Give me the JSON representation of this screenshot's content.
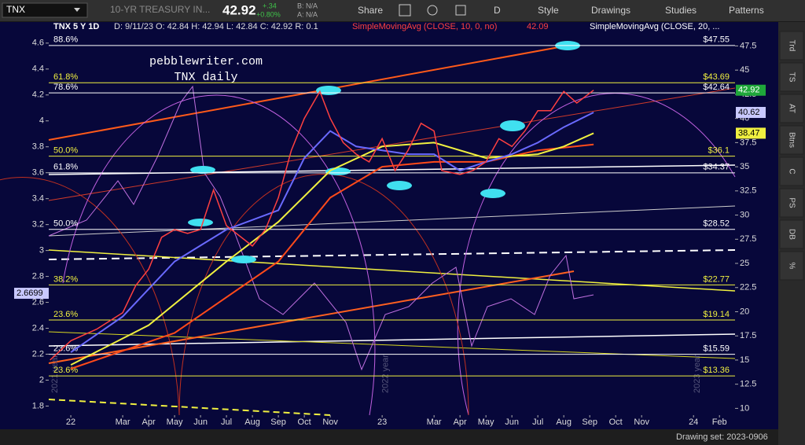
{
  "toolbar": {
    "symbol": "TNX",
    "description": "10-YR TREASURY IN...",
    "last": "42.92",
    "change": "+.34",
    "change_pct": "+0.80%",
    "bid": "B: N/A",
    "ask": "A: N/A",
    "share": "Share",
    "period": "D",
    "style": "Style",
    "drawings": "Drawings",
    "studies": "Studies",
    "patterns": "Patterns"
  },
  "side_tabs": [
    "Trd",
    "TS",
    "AT",
    "Btns",
    "C",
    "PS",
    "DB",
    "%"
  ],
  "footer": {
    "drawing_set": "Drawing set: 2023-0906"
  },
  "chart_data": {
    "type": "line",
    "title": "TNX 5 Y 1D",
    "bar_info": "D: 9/11/23  O: 42.84  H: 42.94  L: 42.84  C: 42.92  R: 0.1",
    "studies": [
      "SimpleMovingAvg (CLOSE, 10, 0, no)",
      "42.09",
      "SimpleMovingAvg (CLOSE, 20, ..."
    ],
    "annotations": [
      "pebblewriter.com",
      "TNX daily"
    ],
    "year_watermarks": [
      {
        "value": -0.85,
        "label": "2021 year"
      },
      {
        "value": 11.9,
        "label": "2022 year"
      },
      {
        "value": 23.9,
        "label": "2023 year"
      }
    ],
    "series": [
      {
        "name": "TNX",
        "color": "#ff4040",
        "x": [
          -0.8,
          0,
          1,
          2,
          2.5,
          3,
          3.5,
          4,
          4.5,
          5,
          5.5,
          6,
          7,
          7.5,
          8,
          8.5,
          9,
          9.6,
          10,
          10.5,
          11,
          11.5,
          12,
          12.5,
          13,
          13.5,
          14,
          14.3,
          15,
          15.5,
          16,
          16.5,
          17,
          17.5,
          18,
          18.5,
          19,
          19.5,
          20.15
        ],
        "values": [
          15.0,
          17.0,
          18.2,
          19.9,
          22.7,
          24.4,
          27.7,
          28.5,
          28.1,
          28.5,
          32.6,
          28.9,
          26.8,
          28.5,
          31.8,
          36.7,
          40.0,
          42.8,
          40.0,
          37.5,
          36.3,
          35.5,
          37.9,
          34.6,
          36.7,
          39.5,
          38.7,
          34.6,
          34.2,
          34.6,
          35.5,
          37.9,
          37.1,
          38.7,
          40.8,
          40.8,
          42.8,
          41.6,
          42.92
        ]
      },
      {
        "color": "#6a6aff",
        "x": [
          0,
          2,
          4,
          6,
          8,
          9,
          10,
          11,
          12,
          13,
          14,
          15,
          16,
          17,
          18,
          19,
          20.15
        ],
        "values": [
          15.8,
          19.5,
          25.2,
          28.5,
          30.5,
          35.9,
          38.7,
          37.1,
          36.7,
          36.3,
          36.3,
          34.6,
          35.5,
          36.3,
          37.5,
          39.1,
          40.62
        ]
      },
      {
        "color": "#f0f040",
        "x": [
          0,
          3,
          6,
          8,
          10,
          12,
          14,
          16,
          18,
          19,
          20.15
        ],
        "values": [
          14.5,
          18.6,
          25.2,
          29.3,
          34.6,
          37.1,
          37.5,
          35.9,
          36.3,
          37.1,
          38.47
        ]
      },
      {
        "color": "#ff4a1a",
        "x": [
          0,
          4,
          8,
          10,
          12,
          14,
          16,
          18,
          20.15
        ],
        "values": [
          14.1,
          17.8,
          25.2,
          31.8,
          35.0,
          35.5,
          35.5,
          36.7,
          37.3
        ]
      }
    ],
    "xlim": [
      -0.85,
      25.6
    ],
    "xticks": [
      {
        "value": 0,
        "label": "22"
      },
      {
        "value": 2,
        "label": "Mar"
      },
      {
        "value": 3,
        "label": "Apr"
      },
      {
        "value": 4,
        "label": "May"
      },
      {
        "value": 5,
        "label": "Jun"
      },
      {
        "value": 6,
        "label": "Jul"
      },
      {
        "value": 7,
        "label": "Aug"
      },
      {
        "value": 8,
        "label": "Sep"
      },
      {
        "value": 9,
        "label": "Oct"
      },
      {
        "value": 10,
        "label": "Nov"
      },
      {
        "value": 12,
        "label": "23"
      },
      {
        "value": 14,
        "label": "Mar"
      },
      {
        "value": 15,
        "label": "Apr"
      },
      {
        "value": 16,
        "label": "May"
      },
      {
        "value": 17,
        "label": "Jun"
      },
      {
        "value": 18,
        "label": "Jul"
      },
      {
        "value": 19,
        "label": "Aug"
      },
      {
        "value": 20,
        "label": "Sep"
      },
      {
        "value": 21,
        "label": "Oct"
      },
      {
        "value": 22,
        "label": "Nov"
      },
      {
        "value": 24,
        "label": "24"
      },
      {
        "value": 25,
        "label": "Feb"
      }
    ],
    "ylim": [
      9.3,
      49
    ],
    "yticks": [
      10,
      12.5,
      15,
      17.5,
      20,
      22.5,
      25,
      27.5,
      30,
      32.5,
      35,
      37.5,
      40,
      42.5,
      45,
      47.5
    ],
    "y2lim": [
      1.73,
      4.69
    ],
    "y2ticks": [
      1.8,
      2,
      2.2,
      2.4,
      2.6,
      2.8,
      3,
      3.2,
      3.4,
      3.6,
      3.8,
      4,
      4.2,
      4.4,
      4.6
    ],
    "levels": [
      {
        "value": 47.55,
        "label": "$47.55",
        "ratio": "88.6%",
        "color": "#ffffff"
      },
      {
        "value": 43.69,
        "label": "$43.69",
        "ratio": "61.8%",
        "color": "#f0f040"
      },
      {
        "value": 42.64,
        "label": "$42.64",
        "ratio": "78.6%",
        "color": "#ffffff"
      },
      {
        "value": 36.1,
        "label": "$36.1",
        "ratio": "50.0%",
        "color": "#f0f040"
      },
      {
        "value": 34.37,
        "label": "$34.37",
        "ratio": "61.8%",
        "color": "#ffffff"
      },
      {
        "value": 28.52,
        "label": "$28.52",
        "ratio": "50.0%",
        "color": "#ffffff"
      },
      {
        "value": 22.77,
        "label": "$22.77",
        "ratio": "38.2%",
        "color": "#f0f040"
      },
      {
        "value": 19.14,
        "label": "$19.14",
        "ratio": "23.6%",
        "color": "#f0f040"
      },
      {
        "value": 15.59,
        "label": "$15.59",
        "ratio": "23.6%",
        "color": "#ffffff"
      },
      {
        "value": 13.36,
        "label": "$13.36",
        "ratio": "23.6%",
        "color": "#f0f040"
      }
    ],
    "badges": [
      {
        "value": 42.92,
        "color": "#1fa83a"
      },
      {
        "value": 40.62,
        "color": "#c8c8ff"
      },
      {
        "value": 38.47,
        "color": "#f0f040"
      }
    ],
    "left_badge": {
      "value": 2.6699,
      "color": "#c8c8ff"
    }
  }
}
